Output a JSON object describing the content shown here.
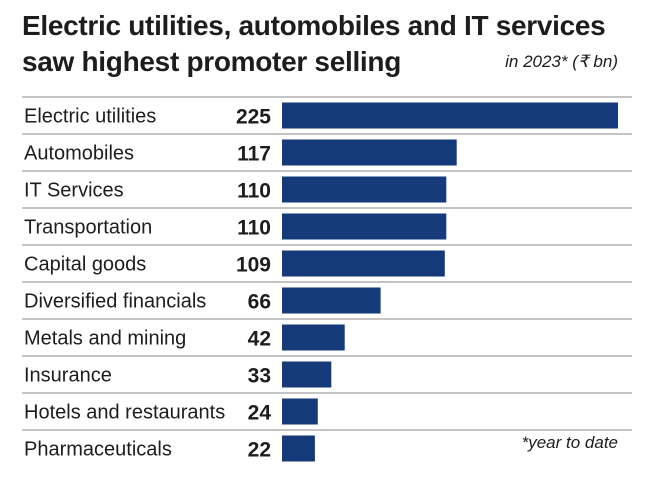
{
  "chart_data": {
    "type": "bar",
    "orientation": "horizontal",
    "title": "Electric utilities, automobiles and IT services saw highest promoter selling",
    "subtitle": "in 2023* (₹ bn)",
    "footnote": "*year to date",
    "categories": [
      "Electric utilities",
      "Automobiles",
      "IT Services",
      "Transportation",
      "Capital goods",
      "Diversified financials",
      "Metals and mining",
      "Insurance",
      "Hotels and restaurants",
      "Pharmaceuticals"
    ],
    "values": [
      225,
      117,
      110,
      110,
      109,
      66,
      42,
      33,
      24,
      22
    ],
    "value_labels": [
      "225",
      "117",
      "110",
      "110",
      "109",
      "66",
      "42",
      "33",
      "24",
      "22"
    ],
    "xlim": [
      0,
      225
    ],
    "grid": false,
    "legend": "none",
    "bar_color": "#153a7a"
  }
}
